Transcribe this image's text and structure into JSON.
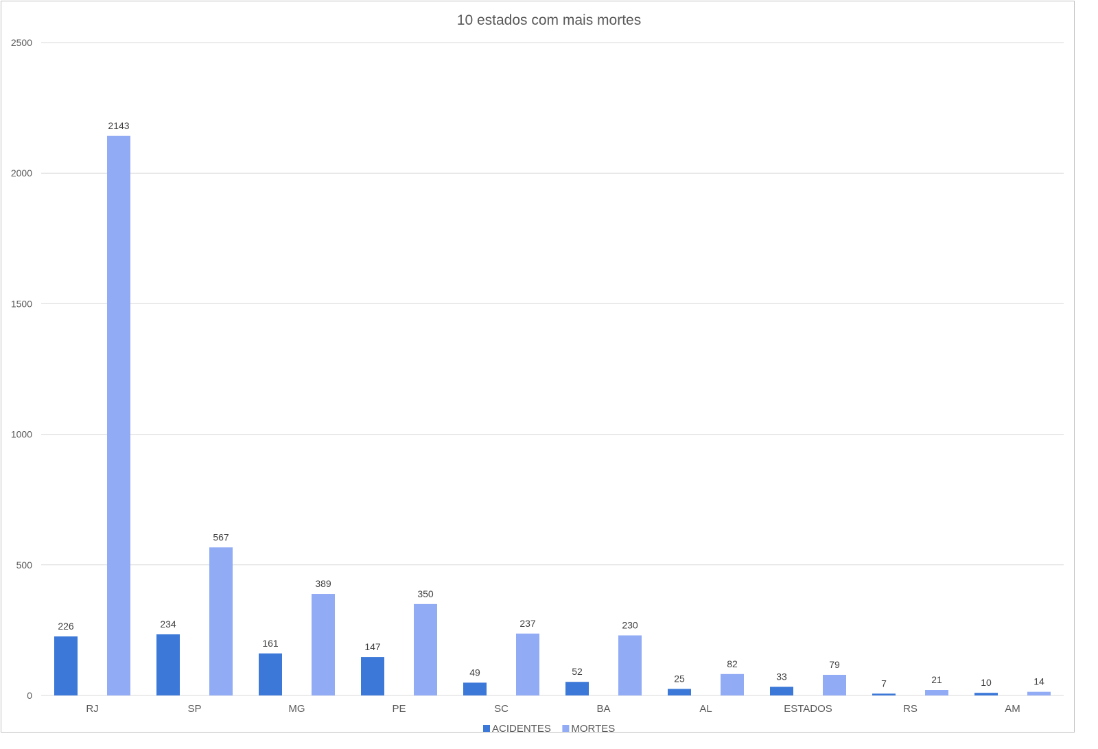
{
  "chart_data": {
    "type": "bar",
    "title": "10 estados com mais mortes",
    "xlabel": "",
    "ylabel": "",
    "categories": [
      "RJ",
      "SP",
      "MG",
      "PE",
      "SC",
      "BA",
      "AL",
      "ESTADOS",
      "RS",
      "AM"
    ],
    "series": [
      {
        "name": "ACIDENTES",
        "color": "#3b78d8",
        "values": [
          226,
          234,
          161,
          147,
          49,
          52,
          25,
          33,
          7,
          10
        ]
      },
      {
        "name": "MORTES",
        "color": "#91abf5",
        "values": [
          2143,
          567,
          389,
          350,
          237,
          230,
          82,
          79,
          21,
          14
        ]
      }
    ],
    "ylim": [
      0,
      2500
    ],
    "yticks": [
      0,
      500,
      1000,
      1500,
      2000,
      2500
    ],
    "grid": true,
    "legend": "bottom",
    "data_labels": true
  }
}
